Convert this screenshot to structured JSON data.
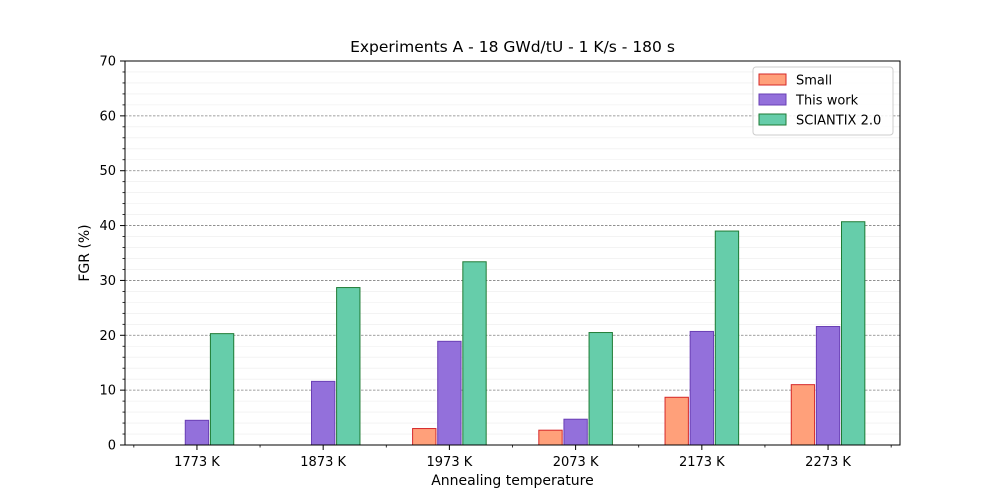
{
  "chart_data": {
    "type": "bar",
    "title": "Experiments A - 18 GWd/tU - 1 K/s - 180 s",
    "xlabel": "Annealing temperature",
    "ylabel": "FGR (%)",
    "ylim": [
      0,
      70
    ],
    "yticks": [
      0,
      10,
      20,
      30,
      40,
      50,
      60,
      70
    ],
    "grid": true,
    "legend_position": "top-right",
    "categories": [
      "1773 K",
      "1873 K",
      "1973 K",
      "2073 K",
      "2173 K",
      "2273 K"
    ],
    "series": [
      {
        "name": "Small",
        "values": [
          0.0,
          0.0,
          3.0,
          2.7,
          8.7,
          11.0
        ],
        "fill": "#FFA07A",
        "stroke": "#D62728"
      },
      {
        "name": "This work",
        "values": [
          4.5,
          11.6,
          18.9,
          4.7,
          20.7,
          21.6
        ],
        "fill": "#9370DB",
        "stroke": "#6A3FB5"
      },
      {
        "name": "SCIANTIX 2.0",
        "values": [
          20.3,
          28.7,
          33.4,
          20.5,
          39.0,
          40.7
        ],
        "fill": "#66CDAA",
        "stroke": "#1E7B34"
      }
    ]
  }
}
